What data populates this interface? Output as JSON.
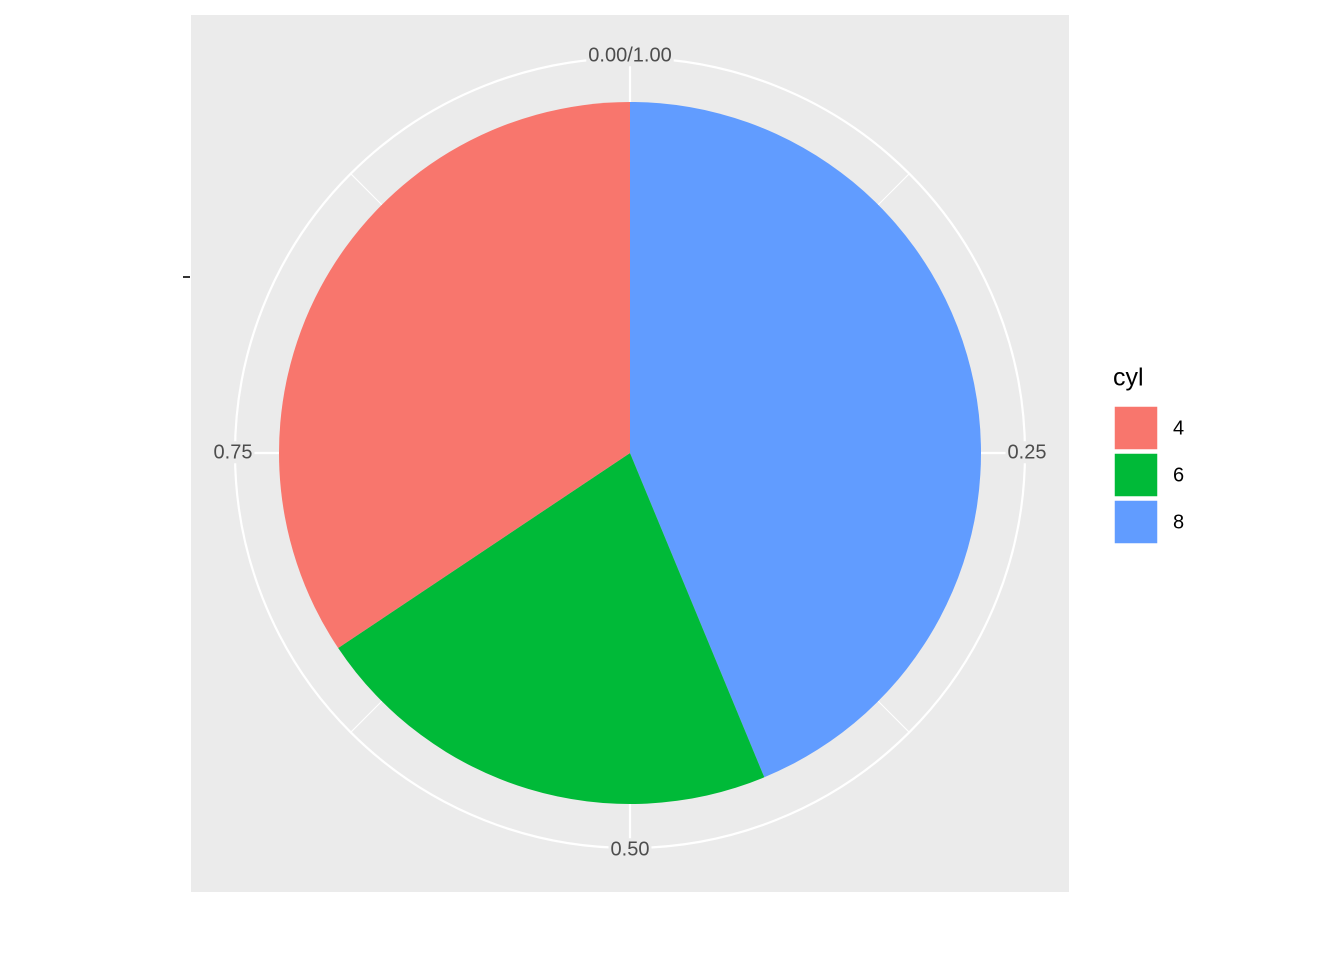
{
  "chart_data": {
    "type": "pie",
    "legend_title": "cyl",
    "categories": [
      "4",
      "6",
      "8"
    ],
    "values": [
      0.34375,
      0.21875,
      0.4375
    ],
    "colors": [
      "#f8766d",
      "#00ba38",
      "#619cff"
    ],
    "thetalim": [
      0,
      1
    ],
    "thetaticks": [
      {
        "value": 0,
        "label": "0.00/1.00"
      },
      0.25,
      {
        "value": 0.5,
        "label": "0.50"
      },
      0.75
    ],
    "grid": true,
    "legend": "right"
  }
}
